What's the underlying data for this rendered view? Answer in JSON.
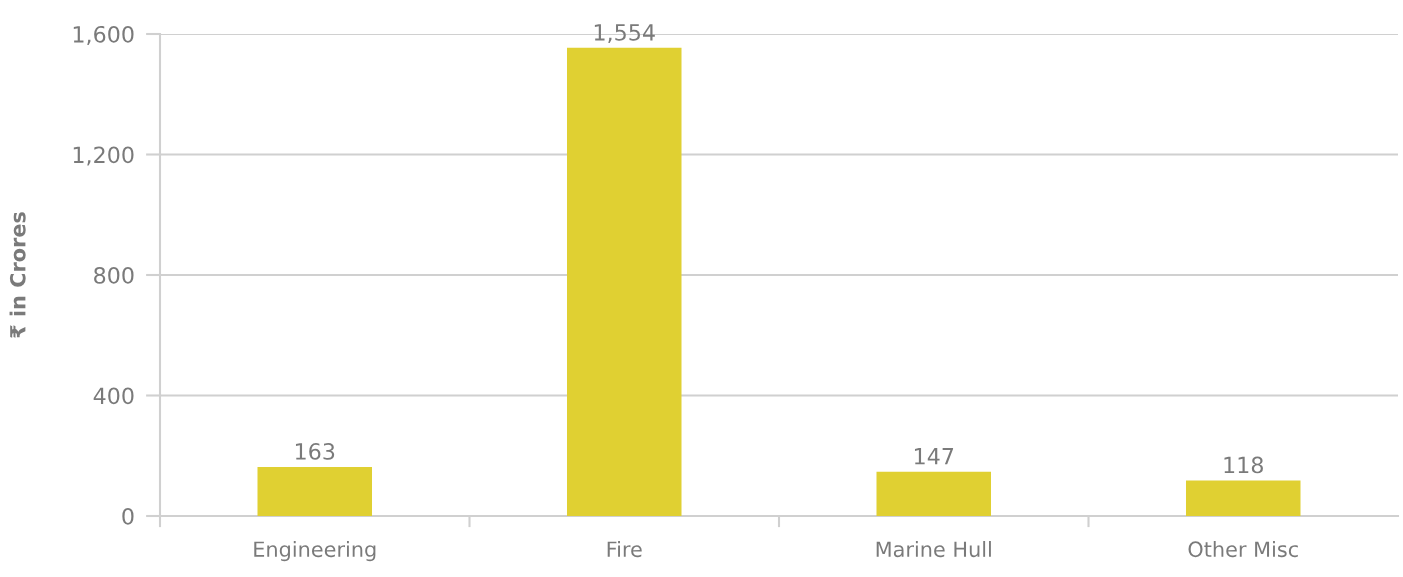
{
  "chart_data": {
    "type": "bar",
    "ylabel": "₹ in Crores",
    "categories": [
      "Engineering",
      "Fire",
      "Marine Hull",
      "Other Misc"
    ],
    "values": [
      163,
      1554,
      147,
      118
    ],
    "color": "#e0d032",
    "ylim": [
      0,
      1600
    ],
    "yticks": [
      0,
      {
        "value": 400,
        "label": "400"
      },
      {
        "value": 800,
        "label": "800"
      },
      {
        "value": 1200,
        "label": "1,200"
      },
      {
        "value": 1600,
        "label": "1,600"
      }
    ],
    "grid": "y",
    "value_labels": [
      "163",
      "1,554",
      "147",
      "118"
    ]
  }
}
